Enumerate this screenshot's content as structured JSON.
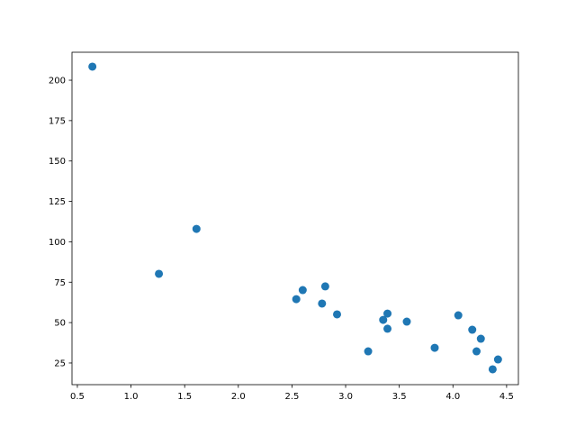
{
  "chart_data": {
    "type": "scatter",
    "title": "",
    "xlabel": "",
    "ylabel": "",
    "xlim": [
      0.45,
      4.61
    ],
    "ylim": [
      11.6,
      217.3
    ],
    "grid": false,
    "marker_color": "#1f77b4",
    "x_ticks": [
      0.5,
      1.0,
      1.5,
      2.0,
      2.5,
      3.0,
      3.5,
      4.0,
      4.5
    ],
    "x_tick_labels": [
      "0.5",
      "1.0",
      "1.5",
      "2.0",
      "2.5",
      "3.0",
      "3.5",
      "4.0",
      "4.5"
    ],
    "y_ticks": [
      25,
      50,
      75,
      100,
      125,
      150,
      175,
      200
    ],
    "y_tick_labels": [
      "25",
      "50",
      "75",
      "100",
      "125",
      "150",
      "175",
      "200"
    ],
    "points": [
      {
        "x": 0.64,
        "y": 208.4
      },
      {
        "x": 1.26,
        "y": 80.2
      },
      {
        "x": 1.61,
        "y": 108.0
      },
      {
        "x": 2.54,
        "y": 64.5
      },
      {
        "x": 2.6,
        "y": 70.1
      },
      {
        "x": 2.81,
        "y": 72.4
      },
      {
        "x": 2.78,
        "y": 61.8
      },
      {
        "x": 2.92,
        "y": 55.1
      },
      {
        "x": 3.21,
        "y": 32.2
      },
      {
        "x": 3.35,
        "y": 51.7
      },
      {
        "x": 3.39,
        "y": 55.6
      },
      {
        "x": 3.39,
        "y": 46.2
      },
      {
        "x": 3.57,
        "y": 50.6
      },
      {
        "x": 3.83,
        "y": 34.4
      },
      {
        "x": 4.05,
        "y": 54.5
      },
      {
        "x": 4.18,
        "y": 45.6
      },
      {
        "x": 4.26,
        "y": 40.0
      },
      {
        "x": 4.22,
        "y": 32.2
      },
      {
        "x": 4.42,
        "y": 27.2
      },
      {
        "x": 4.37,
        "y": 21.1
      }
    ]
  }
}
